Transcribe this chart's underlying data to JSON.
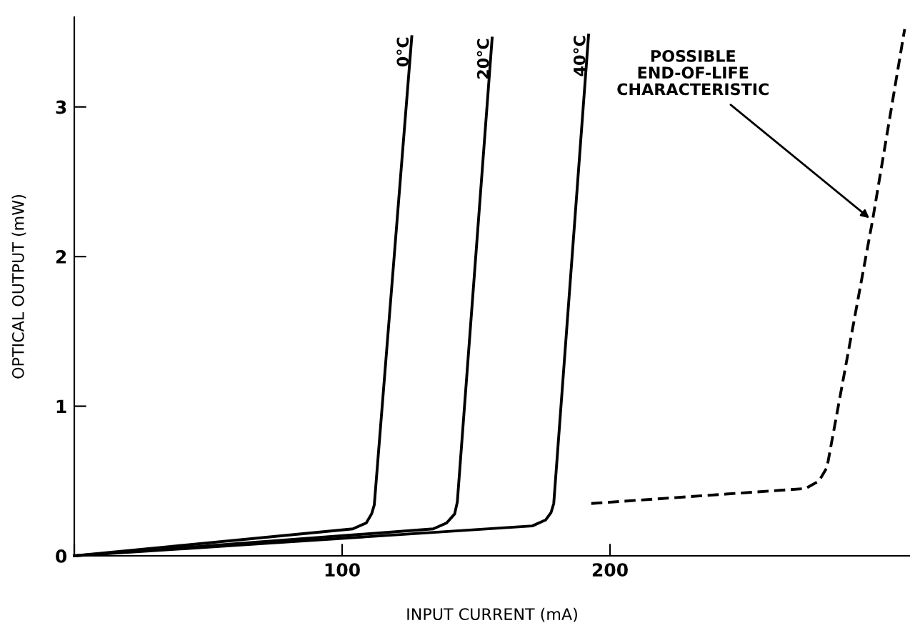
{
  "chart_data": {
    "type": "line",
    "xlabel": "INPUT CURRENT (mA)",
    "ylabel": "OPTICAL OUTPUT (mW)",
    "xlim": [
      0,
      312
    ],
    "ylim": [
      0,
      3.6
    ],
    "xticks": [
      {
        "value": 0,
        "label": null
      },
      100,
      200
    ],
    "yticks": [
      0,
      1,
      2,
      3
    ],
    "grid": false,
    "legend": false,
    "marker": "none",
    "series": [
      {
        "name": "0°C",
        "color": "#000000",
        "line_style": "solid",
        "x": [
          0,
          104,
          109,
          111,
          112,
          126
        ],
        "values": [
          0,
          0.18,
          0.22,
          0.28,
          0.34,
          3.47
        ]
      },
      {
        "name": "20°C",
        "color": "#000000",
        "line_style": "solid",
        "x": [
          0,
          134,
          139,
          142,
          143,
          156
        ],
        "values": [
          0,
          0.18,
          0.22,
          0.28,
          0.36,
          3.46
        ]
      },
      {
        "name": "40°C",
        "color": "#000000",
        "line_style": "solid",
        "x": [
          0,
          171,
          176,
          178,
          179,
          192
        ],
        "values": [
          0,
          0.2,
          0.24,
          0.29,
          0.35,
          3.48
        ]
      },
      {
        "color": "#000000",
        "line_style": "dashed",
        "x": [
          193,
          273,
          278,
          281,
          298,
          310
        ],
        "values": [
          0.35,
          0.45,
          0.5,
          0.59,
          2.24,
          3.52
        ]
      }
    ],
    "annotations": [
      {
        "text": "POSSIBLE\nEND-OF-LIFE\nCHARACTERISTIC",
        "x": 298,
        "y": 2.24
      }
    ]
  }
}
